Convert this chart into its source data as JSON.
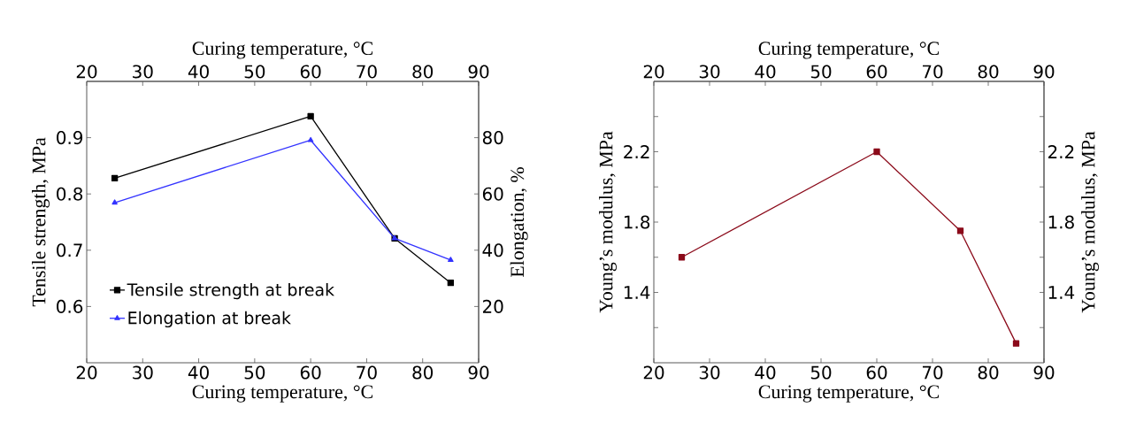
{
  "chart_data": [
    {
      "type": "line",
      "x": [
        25,
        60,
        75,
        85
      ],
      "xlabel": "Curing temperature, °C",
      "x2label": "Curing temperature, °C",
      "ylabel": "Tensile strength, MPa",
      "y2label": "Elongation, %",
      "xlim": [
        20,
        90
      ],
      "xticks": [
        20,
        30,
        40,
        50,
        60,
        70,
        80,
        90
      ],
      "x2lim": [
        20,
        90
      ],
      "x2ticks": [
        20,
        30,
        40,
        50,
        60,
        70,
        80,
        90
      ],
      "ylim": [
        0.5,
        1.0
      ],
      "yticks": [
        0.6,
        0.7,
        0.8,
        0.9
      ],
      "y2lim": [
        0,
        100
      ],
      "y2ticks": [
        20,
        40,
        60,
        80
      ],
      "legend": "bottom left",
      "series": [
        {
          "name": "Tensile strength at break",
          "color": "#000000",
          "marker": "square",
          "values": [
            0.828,
            0.938,
            0.721,
            0.642
          ]
        },
        {
          "name": "Elongation at break",
          "color": "#3333ff",
          "marker": "triangle",
          "axis": "y2",
          "values": [
            56.9,
            79.1,
            44.2,
            36.5
          ]
        }
      ]
    },
    {
      "type": "line",
      "x": [
        25,
        60,
        75,
        85
      ],
      "xlabel": "Curing temperature, °C",
      "x2label": "Curing temperature, °C",
      "ylabel": "Young’s modulus, MPa",
      "y2label": "Young’s modulus, MPa",
      "xlim": [
        20,
        90
      ],
      "xticks": [
        20,
        30,
        40,
        50,
        60,
        70,
        80,
        90
      ],
      "x2lim": [
        20,
        90
      ],
      "x2ticks": [
        20,
        30,
        40,
        50,
        60,
        70,
        80,
        90
      ],
      "ylim": [
        1.0,
        2.6
      ],
      "yticks": [
        {
          "value": 1.2,
          "label": null
        },
        1.4,
        {
          "value": 1.6,
          "label": null
        },
        1.8,
        {
          "value": 2.0,
          "label": null
        },
        2.2,
        {
          "value": 2.4,
          "label": null
        }
      ],
      "y2lim": [
        1.0,
        2.6
      ],
      "y2ticks": [
        {
          "value": 1.2,
          "label": null
        },
        1.4,
        {
          "value": 1.6,
          "label": null
        },
        1.8,
        {
          "value": 2.0,
          "label": null
        },
        2.2,
        {
          "value": 2.4,
          "label": null
        }
      ],
      "series": [
        {
          "color": "#8b0a1a",
          "marker": "square",
          "values": [
            1.6,
            2.2,
            1.75,
            1.11
          ]
        }
      ]
    }
  ]
}
